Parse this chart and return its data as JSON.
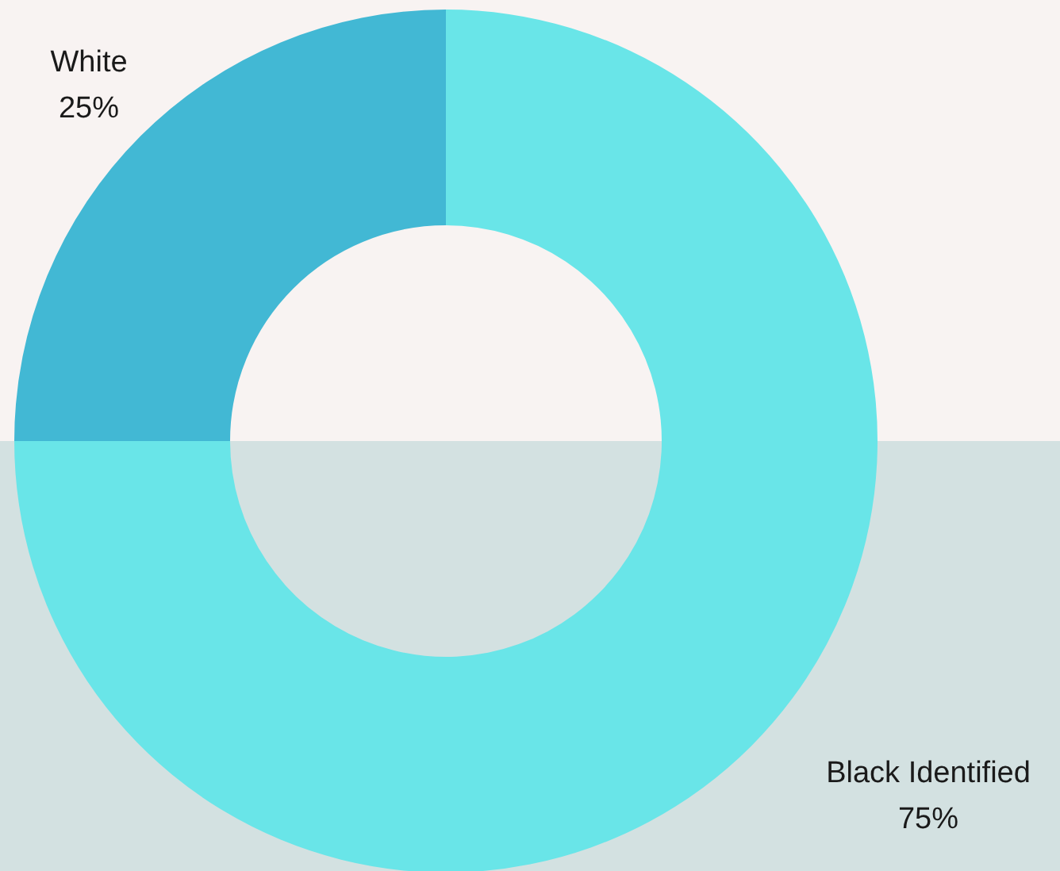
{
  "chart_data": {
    "type": "donut",
    "categories": [
      "Black Identified",
      "White"
    ],
    "values": [
      75,
      25
    ],
    "colors": [
      "#69e5e8",
      "#42b8d4"
    ],
    "value_labels": [
      "75%",
      "25%"
    ]
  }
}
